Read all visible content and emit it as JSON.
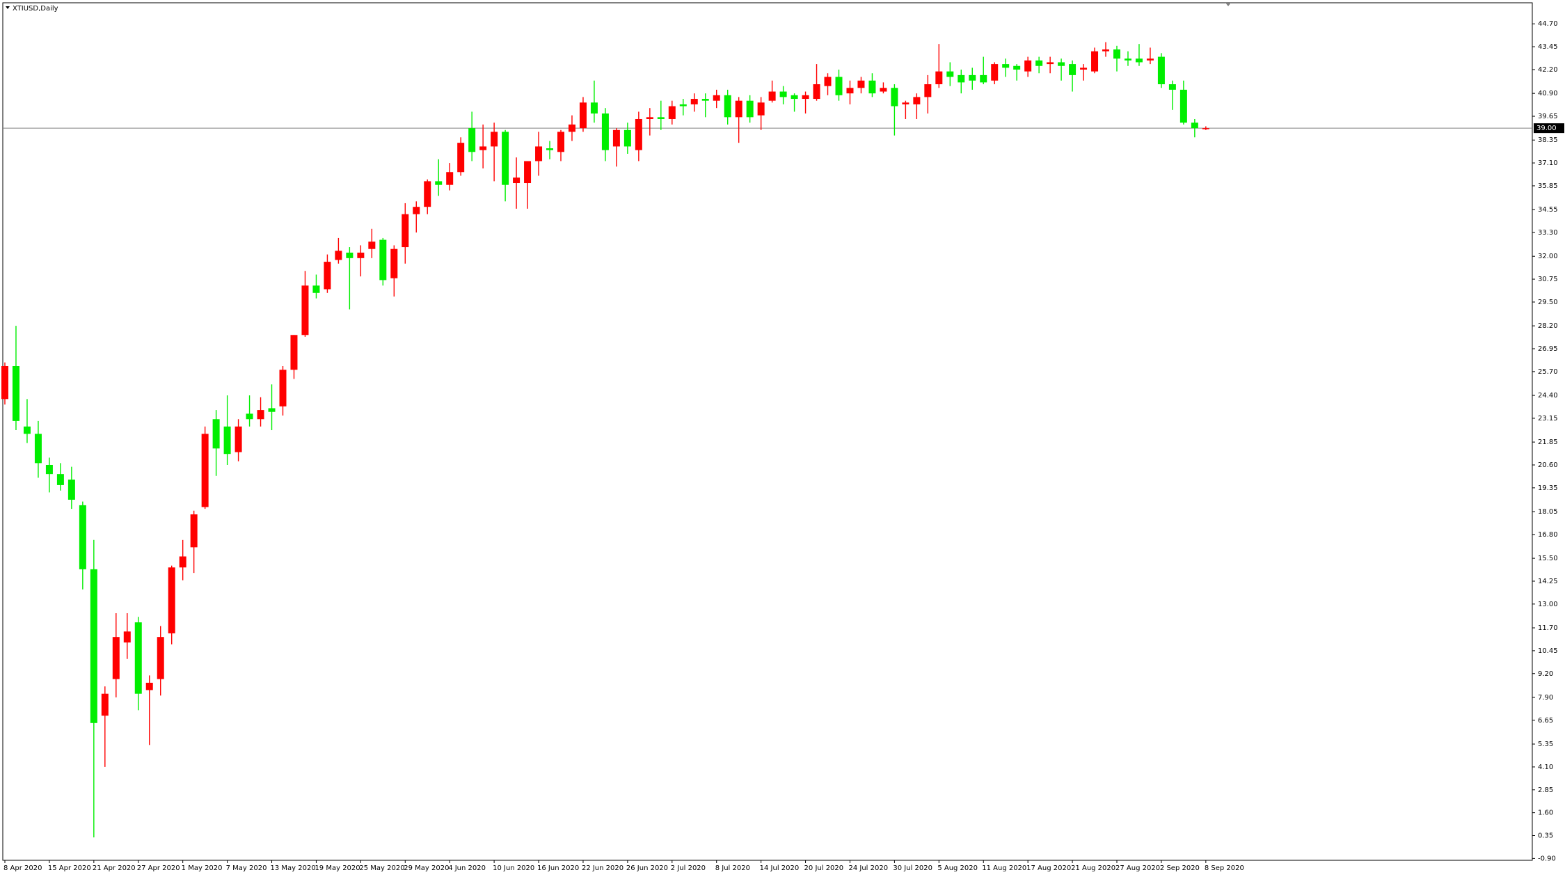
{
  "chart_data": {
    "type": "candlestick",
    "title": "XTIUSD,Daily",
    "up_color": "#ff0000",
    "down_color": "#00ee00",
    "categories": [
      "8 Apr 2020",
      null,
      null,
      null,
      "15 Apr 2020",
      null,
      null,
      null,
      "21 Apr 2020",
      null,
      null,
      null,
      "27 Apr 2020",
      null,
      null,
      null,
      "1 May 2020",
      null,
      null,
      null,
      "7 May 2020",
      null,
      null,
      null,
      "13 May 2020",
      null,
      null,
      null,
      "19 May 2020",
      null,
      null,
      null,
      "25 May 2020",
      null,
      null,
      null,
      "29 May 2020",
      null,
      null,
      null,
      "4 Jun 2020",
      null,
      null,
      null,
      "10 Jun 2020",
      null,
      null,
      null,
      "16 Jun 2020",
      null,
      null,
      null,
      "22 Jun 2020",
      null,
      null,
      null,
      "26 Jun 2020",
      null,
      null,
      null,
      "2 Jul 2020",
      null,
      null,
      null,
      "8 Jul 2020",
      null,
      null,
      null,
      "14 Jul 2020",
      null,
      null,
      null,
      "20 Jul 2020",
      null,
      null,
      null,
      "24 Jul 2020",
      null,
      null,
      null,
      "30 Jul 2020",
      null,
      null,
      null,
      "5 Aug 2020",
      null,
      null,
      null,
      "11 Aug 2020",
      null,
      null,
      null,
      "17 Aug 2020",
      null,
      null,
      null,
      "21 Aug 2020",
      null,
      null,
      null,
      "27 Aug 2020",
      null,
      null,
      null,
      "2 Sep 2020",
      null,
      null,
      null,
      "8 Sep 2020"
    ],
    "open": [
      24.2,
      26.0,
      22.7,
      22.3,
      20.6,
      20.1,
      19.8,
      18.4,
      14.9,
      6.9,
      8.9,
      10.9,
      12.0,
      8.3,
      8.9,
      11.4,
      15.0,
      16.1,
      18.3,
      23.1,
      22.7,
      21.3,
      23.4,
      23.1,
      23.7,
      23.8,
      25.8,
      27.7,
      30.4,
      30.2,
      31.8,
      32.2,
      31.9,
      32.4,
      32.9,
      30.8,
      32.5,
      34.3,
      34.7,
      36.1,
      35.9,
      36.6,
      39.0,
      37.8,
      38.0,
      38.8,
      36.0,
      36.0,
      37.2,
      37.9,
      37.7,
      38.8,
      39.0,
      40.4,
      39.8,
      38.0,
      38.9,
      37.8,
      39.5,
      39.6,
      39.5,
      40.3,
      40.3,
      40.6,
      40.5,
      40.8,
      39.6,
      40.5,
      39.7,
      40.5,
      41.0,
      40.8,
      40.6,
      40.6,
      41.3,
      41.8,
      40.9,
      41.2,
      41.6,
      41.0,
      41.2,
      40.3,
      40.3,
      40.7,
      41.4,
      42.1,
      41.9,
      41.9,
      41.9,
      41.6,
      42.5,
      42.4,
      42.1,
      42.7,
      42.5,
      42.6,
      42.5,
      42.2,
      42.1,
      43.2,
      43.3,
      42.8,
      42.8,
      42.7,
      42.9,
      41.4,
      41.1,
      39.3,
      38.95
    ],
    "high": [
      26.2,
      28.2,
      24.2,
      23.0,
      21.0,
      20.7,
      20.5,
      18.6,
      16.5,
      8.5,
      12.5,
      12.5,
      12.3,
      9.1,
      11.8,
      15.1,
      16.5,
      18.1,
      22.7,
      23.6,
      24.4,
      23.1,
      24.4,
      24.3,
      25.0,
      26.0,
      27.7,
      31.2,
      31.0,
      32.1,
      33.0,
      32.5,
      32.6,
      33.5,
      33.0,
      32.6,
      34.9,
      35.0,
      36.2,
      37.3,
      37.1,
      38.5,
      39.9,
      39.2,
      39.3,
      38.9,
      37.4,
      37.2,
      38.8,
      38.3,
      38.9,
      39.7,
      40.7,
      41.6,
      40.1,
      39.0,
      39.3,
      39.9,
      40.1,
      40.5,
      40.5,
      40.6,
      40.9,
      40.9,
      41.1,
      41.1,
      40.7,
      40.8,
      40.7,
      41.6,
      41.3,
      40.9,
      41.0,
      42.5,
      42.0,
      42.2,
      41.6,
      41.8,
      42.0,
      41.5,
      41.4,
      40.5,
      40.9,
      41.9,
      43.6,
      42.6,
      42.2,
      42.3,
      42.9,
      42.6,
      42.8,
      42.5,
      42.9,
      42.9,
      42.9,
      42.8,
      42.7,
      42.5,
      43.4,
      43.7,
      43.5,
      43.2,
      43.6,
      43.4,
      43.1,
      41.6,
      41.6,
      39.5,
      39.1
    ],
    "low": [
      23.9,
      22.5,
      21.8,
      19.9,
      19.1,
      19.2,
      18.2,
      13.8,
      0.25,
      4.1,
      7.9,
      10.0,
      7.2,
      5.3,
      8.0,
      10.8,
      14.3,
      14.7,
      18.2,
      20.0,
      20.6,
      20.8,
      22.7,
      22.7,
      22.5,
      23.3,
      25.3,
      27.6,
      29.7,
      30.0,
      31.6,
      29.1,
      30.9,
      31.9,
      30.4,
      29.8,
      31.6,
      33.3,
      34.3,
      35.3,
      35.6,
      36.4,
      37.2,
      36.8,
      36.1,
      35.0,
      34.6,
      34.6,
      36.4,
      37.3,
      37.2,
      38.3,
      38.8,
      39.3,
      37.2,
      36.9,
      37.6,
      37.2,
      38.6,
      38.9,
      39.2,
      39.7,
      39.9,
      39.6,
      40.1,
      39.2,
      38.2,
      39.3,
      38.9,
      40.4,
      40.3,
      39.9,
      39.8,
      40.5,
      40.8,
      40.5,
      40.3,
      40.9,
      40.7,
      40.9,
      38.6,
      39.5,
      39.5,
      39.8,
      41.2,
      41.3,
      40.9,
      41.1,
      41.4,
      41.4,
      41.8,
      41.6,
      41.8,
      42.0,
      42.0,
      41.6,
      41.0,
      41.6,
      42.0,
      42.9,
      42.1,
      42.4,
      42.4,
      42.5,
      41.2,
      40.0,
      39.2,
      38.5,
      38.9
    ],
    "close": [
      26.0,
      23.0,
      22.3,
      20.7,
      20.1,
      19.5,
      18.7,
      14.9,
      6.5,
      8.1,
      11.2,
      11.5,
      8.1,
      8.7,
      11.2,
      15.0,
      15.6,
      17.9,
      22.3,
      21.5,
      21.2,
      22.7,
      23.1,
      23.6,
      23.5,
      25.8,
      27.7,
      30.4,
      30.0,
      31.7,
      32.3,
      31.9,
      32.2,
      32.8,
      30.7,
      32.4,
      34.3,
      34.7,
      36.1,
      35.9,
      36.6,
      38.2,
      37.7,
      38.0,
      38.8,
      35.9,
      36.3,
      37.2,
      38.0,
      37.8,
      38.8,
      39.2,
      40.4,
      39.8,
      37.8,
      38.9,
      38.0,
      39.5,
      39.6,
      39.5,
      40.2,
      40.2,
      40.6,
      40.5,
      40.8,
      39.6,
      40.5,
      39.6,
      40.4,
      41.0,
      40.7,
      40.6,
      40.8,
      41.4,
      41.8,
      40.8,
      41.2,
      41.6,
      40.9,
      41.2,
      40.2,
      40.4,
      40.7,
      41.4,
      42.1,
      41.8,
      41.5,
      41.6,
      41.5,
      42.5,
      42.3,
      42.2,
      42.7,
      42.4,
      42.6,
      42.4,
      41.9,
      42.3,
      43.2,
      43.3,
      42.8,
      42.7,
      42.6,
      42.8,
      41.4,
      41.1,
      39.3,
      39.0,
      39.0
    ],
    "ylim": [
      -1.0,
      45.85
    ],
    "yticks": [
      {
        "value": 44.7,
        "label": "44.70"
      },
      {
        "value": 43.45,
        "label": "43.45"
      },
      {
        "value": 42.2,
        "label": "42.20"
      },
      {
        "value": 40.9,
        "label": "40.90"
      },
      {
        "value": 39.65,
        "label": "39.65"
      },
      {
        "value": 38.35,
        "label": "38.35"
      },
      {
        "value": 37.1,
        "label": "37.10"
      },
      {
        "value": 35.85,
        "label": "35.85"
      },
      {
        "value": 34.55,
        "label": "34.55"
      },
      {
        "value": 33.3,
        "label": "33.30"
      },
      {
        "value": 32,
        "label": "32.00"
      },
      {
        "value": 30.75,
        "label": "30.75"
      },
      {
        "value": 29.5,
        "label": "29.50"
      },
      {
        "value": 28.2,
        "label": "28.20"
      },
      {
        "value": 26.95,
        "label": "26.95"
      },
      {
        "value": 25.7,
        "label": "25.70"
      },
      {
        "value": 24.4,
        "label": "24.40"
      },
      {
        "value": 23.15,
        "label": "23.15"
      },
      {
        "value": 21.85,
        "label": "21.85"
      },
      {
        "value": 20.6,
        "label": "20.60"
      },
      {
        "value": 19.35,
        "label": "19.35"
      },
      {
        "value": 18.05,
        "label": "18.05"
      },
      {
        "value": 16.8,
        "label": "16.80"
      },
      {
        "value": 15.5,
        "label": "15.50"
      },
      {
        "value": 14.25,
        "label": "14.25"
      },
      {
        "value": 13,
        "label": "13.00"
      },
      {
        "value": 11.7,
        "label": "11.70"
      },
      {
        "value": 10.45,
        "label": "10.45"
      },
      {
        "value": 9.2,
        "label": "9.20"
      },
      {
        "value": 7.9,
        "label": "7.90"
      },
      {
        "value": 6.65,
        "label": "6.65"
      },
      {
        "value": 5.35,
        "label": "5.35"
      },
      {
        "value": 4.1,
        "label": "4.10"
      },
      {
        "value": 2.85,
        "label": "2.85"
      },
      {
        "value": 1.6,
        "label": "1.60"
      },
      {
        "value": 0.35,
        "label": "0.35"
      },
      {
        "value": -0.9,
        "label": "-0.90"
      }
    ],
    "bid_line": {
      "value": 39.0,
      "label": "39.00"
    }
  }
}
